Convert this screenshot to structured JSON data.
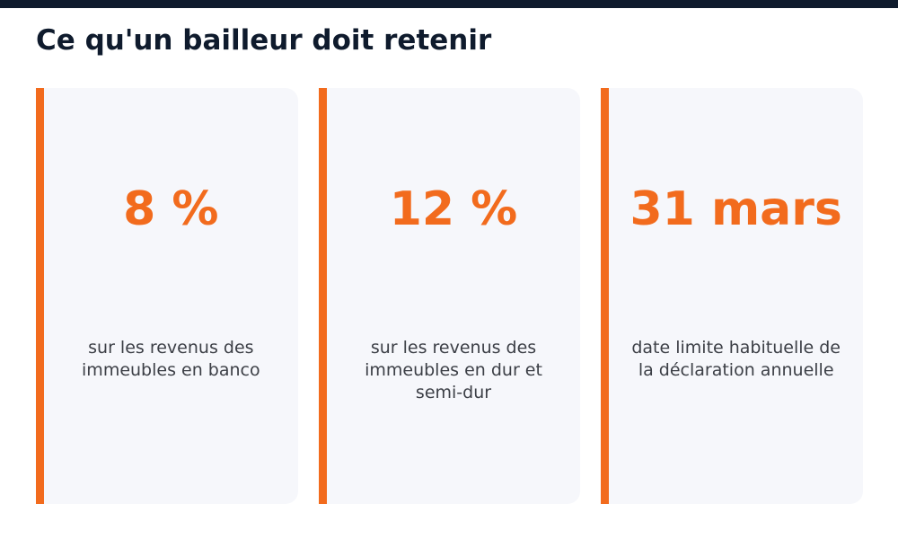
{
  "title": "Ce qu'un bailleur doit retenir",
  "colors": {
    "accent": "#f26b1d",
    "top_bar": "#0f1b2d",
    "card_bg": "#f6f7fb",
    "title_text": "#0f1b2d",
    "body_text": "#3c3f46"
  },
  "cards": [
    {
      "value": "8 %",
      "description": "sur les revenus des immeubles en banco"
    },
    {
      "value": "12 %",
      "description": "sur les revenus des immeubles en dur et semi-dur"
    },
    {
      "value": "31 mars",
      "description": "date limite habituelle de la déclaration annuelle"
    }
  ]
}
